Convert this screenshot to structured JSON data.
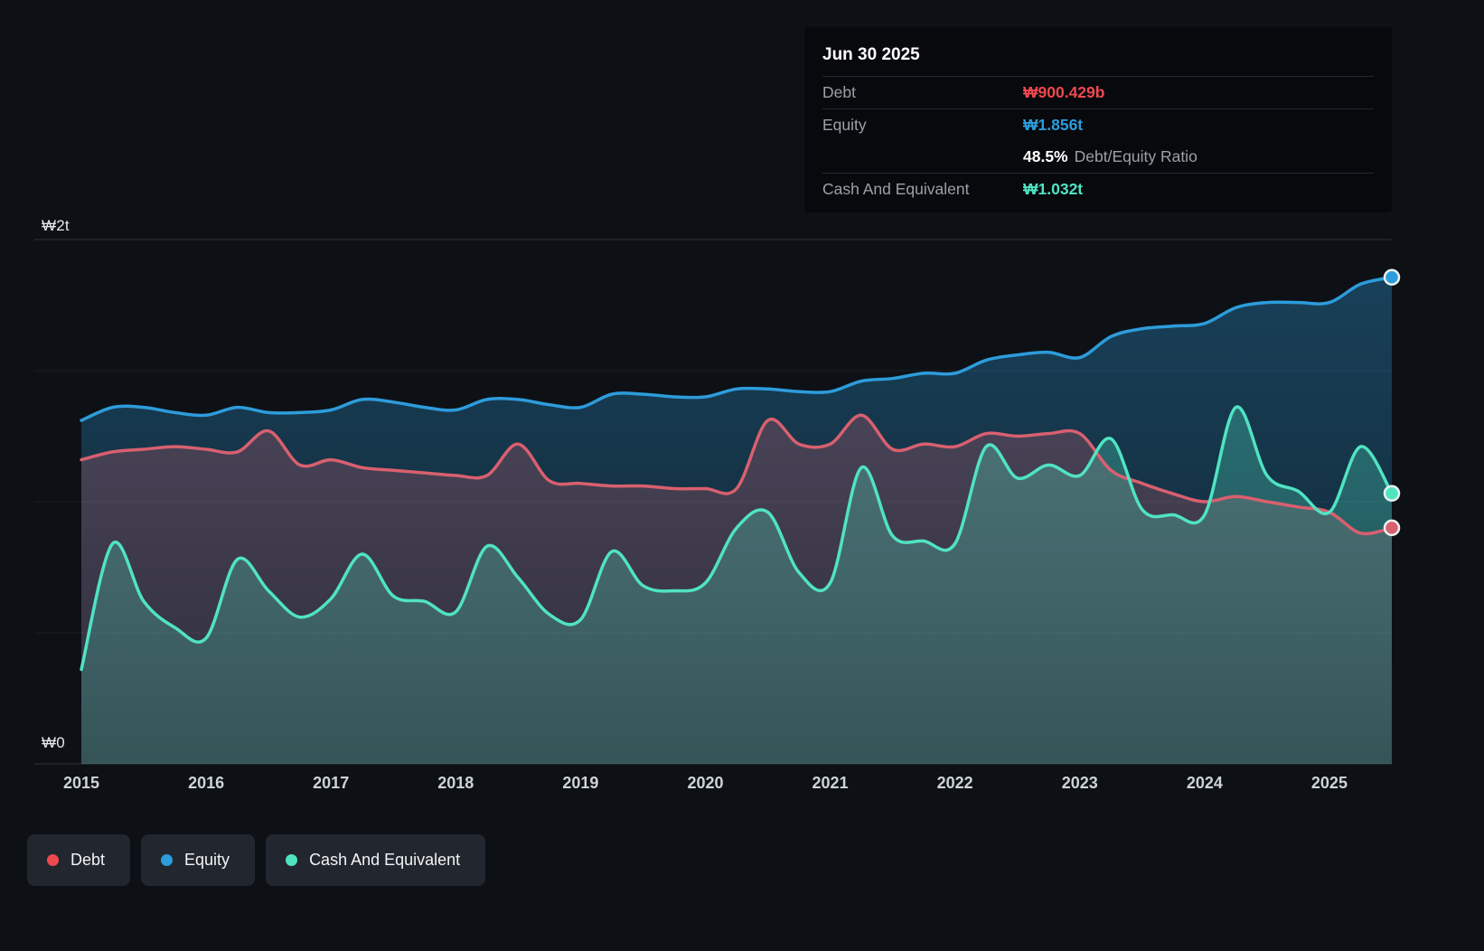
{
  "colors": {
    "background": "#0d1116",
    "debt": "#ef4950",
    "debt_line": "#d8606f",
    "equity": "#2d9cdb",
    "cash": "#50e3c2",
    "grid": "#ffffff",
    "tooltip_bg": "#07090c",
    "legend_bg": "#22262e"
  },
  "tooltip": {
    "date": "Jun 30 2025",
    "debt_label": "Debt",
    "debt_value": "₩900.429b",
    "equity_label": "Equity",
    "equity_value": "₩1.856t",
    "ratio_value": "48.5%",
    "ratio_label": "Debt/Equity Ratio",
    "cash_label": "Cash And Equivalent",
    "cash_value": "₩1.032t"
  },
  "axes": {
    "y_top": "₩2t",
    "y_bottom": "₩0"
  },
  "legend": [
    {
      "key": "debt",
      "label": "Debt"
    },
    {
      "key": "equity",
      "label": "Equity"
    },
    {
      "key": "cash",
      "label": "Cash And Equivalent"
    }
  ],
  "chart_data": {
    "type": "area",
    "units": "₩ trillions",
    "x_range": [
      2015,
      2025.5
    ],
    "y_range": [
      0,
      2
    ],
    "x_ticks": [
      2015,
      2016,
      2017,
      2018,
      2019,
      2020,
      2021,
      2022,
      2023,
      2024,
      2025
    ],
    "y_gridlines": [
      0,
      0.5,
      1,
      1.5,
      2
    ],
    "x": [
      2015.0,
      2015.25,
      2015.5,
      2015.75,
      2016.0,
      2016.25,
      2016.5,
      2016.75,
      2017.0,
      2017.25,
      2017.5,
      2017.75,
      2018.0,
      2018.25,
      2018.5,
      2018.75,
      2019.0,
      2019.25,
      2019.5,
      2019.75,
      2020.0,
      2020.25,
      2020.5,
      2020.75,
      2021.0,
      2021.25,
      2021.5,
      2021.75,
      2022.0,
      2022.25,
      2022.5,
      2022.75,
      2023.0,
      2023.25,
      2023.5,
      2023.75,
      2024.0,
      2024.25,
      2024.5,
      2024.75,
      2025.0,
      2025.25,
      2025.5
    ],
    "series": [
      {
        "name": "Equity",
        "key": "equity",
        "color": "#2d9cdb",
        "values": [
          1.31,
          1.36,
          1.36,
          1.34,
          1.33,
          1.36,
          1.34,
          1.34,
          1.35,
          1.39,
          1.38,
          1.36,
          1.35,
          1.39,
          1.39,
          1.37,
          1.36,
          1.41,
          1.41,
          1.4,
          1.4,
          1.43,
          1.43,
          1.42,
          1.42,
          1.46,
          1.47,
          1.49,
          1.49,
          1.54,
          1.56,
          1.57,
          1.55,
          1.63,
          1.66,
          1.67,
          1.68,
          1.74,
          1.76,
          1.76,
          1.76,
          1.83,
          1.856
        ]
      },
      {
        "name": "Debt",
        "key": "debt",
        "color": "#d8606f",
        "values": [
          1.16,
          1.19,
          1.2,
          1.21,
          1.2,
          1.19,
          1.27,
          1.14,
          1.16,
          1.13,
          1.12,
          1.11,
          1.1,
          1.1,
          1.22,
          1.08,
          1.07,
          1.06,
          1.06,
          1.05,
          1.05,
          1.05,
          1.31,
          1.22,
          1.22,
          1.33,
          1.2,
          1.22,
          1.21,
          1.26,
          1.25,
          1.26,
          1.26,
          1.12,
          1.07,
          1.03,
          1.0,
          1.02,
          1.0,
          0.98,
          0.96,
          0.88,
          0.900429
        ]
      },
      {
        "name": "Cash And Equivalent",
        "key": "cash",
        "color": "#50e3c2",
        "values": [
          0.36,
          0.84,
          0.62,
          0.52,
          0.48,
          0.78,
          0.66,
          0.56,
          0.63,
          0.8,
          0.64,
          0.62,
          0.58,
          0.83,
          0.71,
          0.57,
          0.55,
          0.81,
          0.68,
          0.66,
          0.69,
          0.9,
          0.96,
          0.73,
          0.69,
          1.13,
          0.87,
          0.85,
          0.84,
          1.21,
          1.09,
          1.14,
          1.1,
          1.24,
          0.97,
          0.95,
          0.95,
          1.36,
          1.1,
          1.04,
          0.96,
          1.21,
          1.032
        ]
      }
    ]
  }
}
